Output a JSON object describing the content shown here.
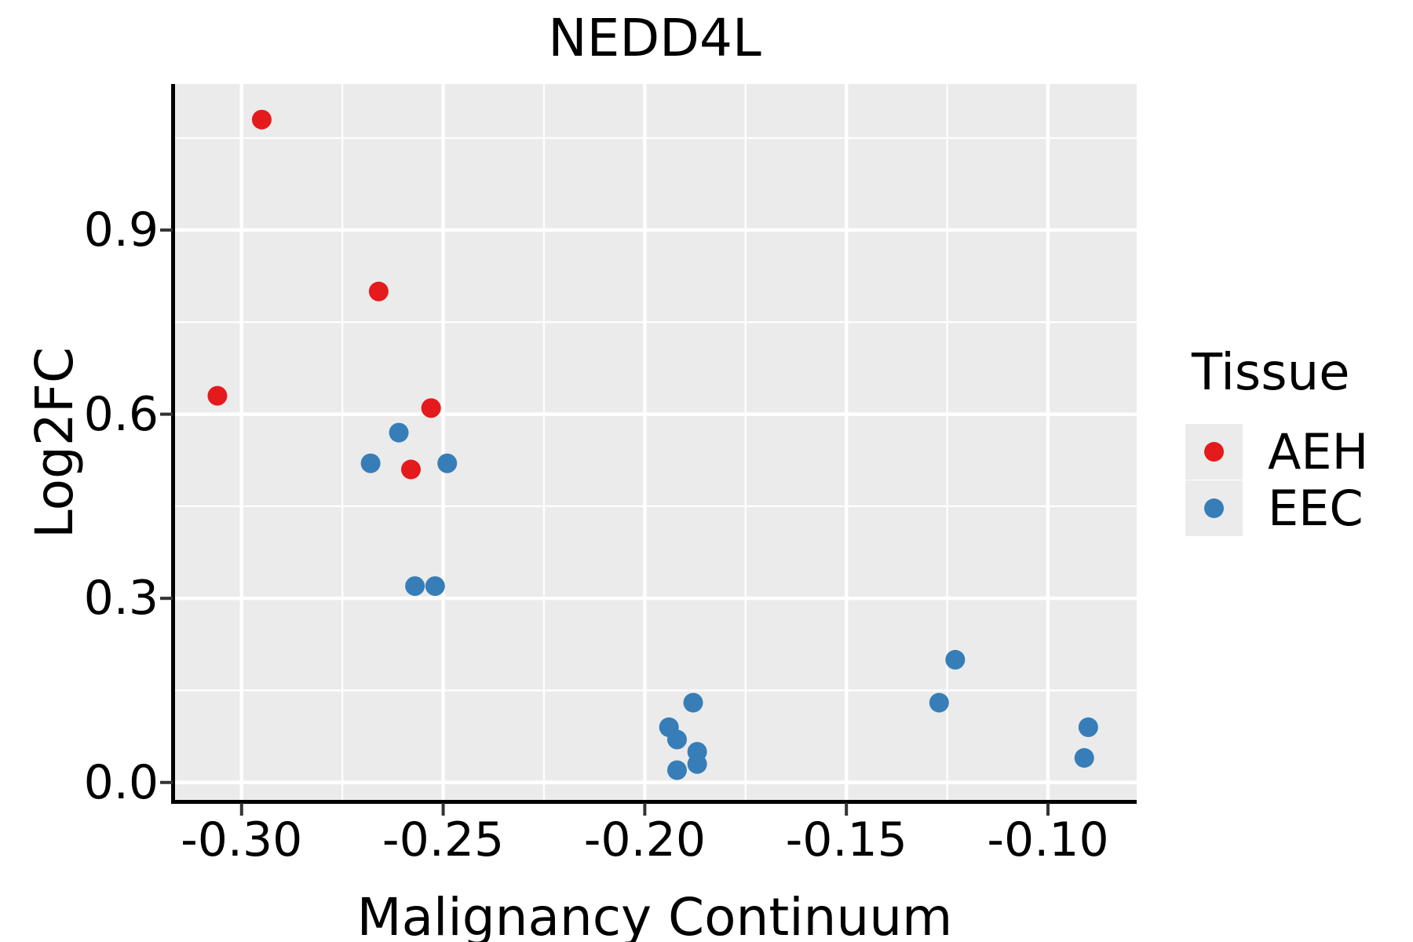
{
  "chart_data": {
    "type": "scatter",
    "title": "NEDD4L",
    "xlabel": "Malignancy Continuum",
    "ylabel": "Log2FC",
    "xlim": [
      -0.3165,
      -0.078
    ],
    "ylim": [
      -0.031,
      1.138
    ],
    "x_ticks": [
      -0.3,
      -0.25,
      -0.2,
      -0.15,
      -0.1
    ],
    "x_tick_labels": [
      "-0.30",
      "-0.25",
      "-0.20",
      "-0.15",
      "-0.10"
    ],
    "x_minor_ticks": [
      -0.275,
      -0.225,
      -0.175,
      -0.125
    ],
    "y_ticks": [
      0.0,
      0.3,
      0.6,
      0.9
    ],
    "y_tick_labels": [
      "0.0",
      "0.3",
      "0.6",
      "0.9"
    ],
    "y_minor_ticks": [
      0.15,
      0.45,
      0.75,
      1.05
    ],
    "grid": true,
    "legend_position": "right",
    "panel_bg": "#EBEBEB",
    "grid_color": "#FFFFFF",
    "axis_color": "#000000",
    "tick_color": "#333333",
    "point_radius_px": 12.5,
    "legend": {
      "title": "Tissue",
      "entries": [
        {
          "label": "AEH",
          "color": "#E41A1C"
        },
        {
          "label": "EEC",
          "color": "#377EB8"
        }
      ]
    },
    "series": [
      {
        "name": "AEH",
        "color": "#E41A1C",
        "points": [
          [
            -0.295,
            1.08
          ],
          [
            -0.306,
            0.63
          ],
          [
            -0.266,
            0.8
          ],
          [
            -0.253,
            0.61
          ],
          [
            -0.258,
            0.51
          ]
        ]
      },
      {
        "name": "EEC",
        "color": "#377EB8",
        "points": [
          [
            -0.261,
            0.57
          ],
          [
            -0.268,
            0.52
          ],
          [
            -0.249,
            0.52
          ],
          [
            -0.257,
            0.32
          ],
          [
            -0.252,
            0.32
          ],
          [
            -0.194,
            0.09
          ],
          [
            -0.192,
            0.07
          ],
          [
            -0.192,
            0.02
          ],
          [
            -0.188,
            0.13
          ],
          [
            -0.187,
            0.05
          ],
          [
            -0.187,
            0.03
          ],
          [
            -0.127,
            0.13
          ],
          [
            -0.123,
            0.2
          ],
          [
            -0.091,
            0.04
          ],
          [
            -0.09,
            0.09
          ]
        ]
      }
    ]
  }
}
